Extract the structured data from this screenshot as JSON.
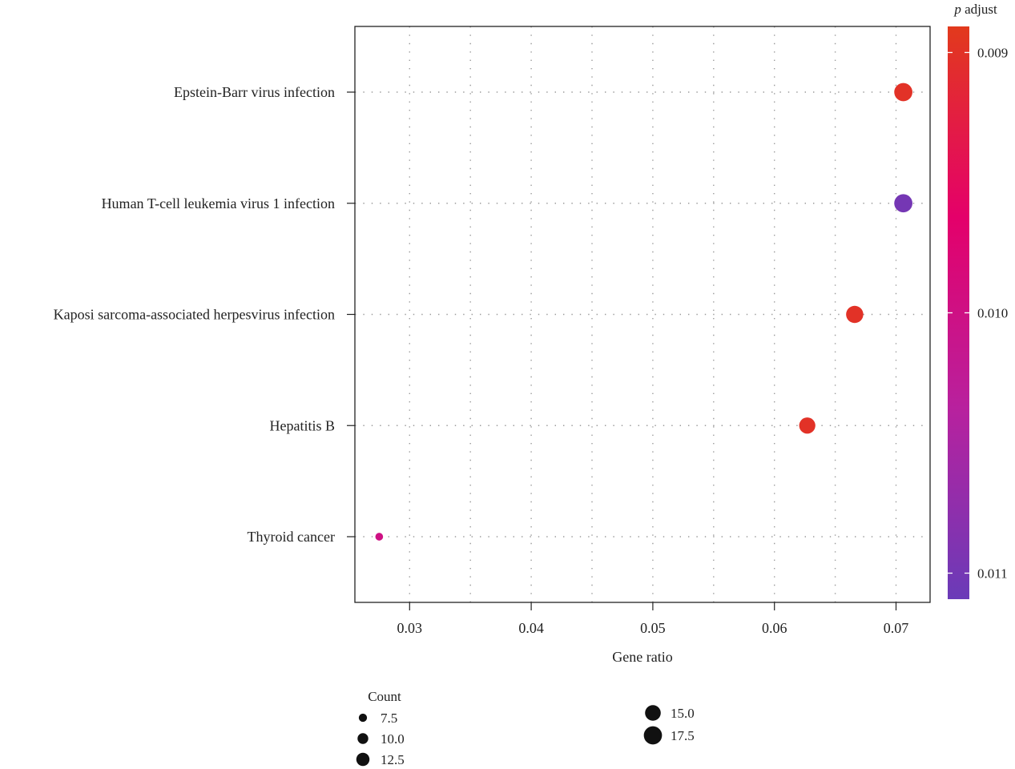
{
  "chart_data": {
    "type": "scatter",
    "xlabel": "Gene ratio",
    "ylabel": "",
    "xlim": [
      0.0255,
      0.0728
    ],
    "x_ticks": [
      0.03,
      0.04,
      0.05,
      0.06,
      0.07
    ],
    "x_tick_labels": [
      "0.03",
      "0.04",
      "0.05",
      "0.06",
      "0.07"
    ],
    "grid": true,
    "categories": [
      "Epstein-Barr virus infection",
      "Human T-cell leukemia virus 1 infection",
      "Kaposi sarcoma-associated herpesvirus infection",
      "Hepatitis B",
      "Thyroid cancer"
    ],
    "points": [
      {
        "category": "Epstein-Barr virus infection",
        "x": 0.0706,
        "count": 17.5,
        "p_adjust": 0.009
      },
      {
        "category": "Human T-cell leukemia virus 1 infection",
        "x": 0.0706,
        "count": 17.5,
        "p_adjust": 0.011
      },
      {
        "category": "Kaposi sarcoma-associated herpesvirus infection",
        "x": 0.0666,
        "count": 16.5,
        "p_adjust": 0.009
      },
      {
        "category": "Hepatitis B",
        "x": 0.0627,
        "count": 15.5,
        "p_adjust": 0.009
      },
      {
        "category": "Thyroid cancer",
        "x": 0.0275,
        "count": 7.0,
        "p_adjust": 0.01
      }
    ],
    "color_legend": {
      "title_italic": "p",
      "title_rest": " adjust",
      "range": [
        0.0089,
        0.0111
      ],
      "ticks": [
        0.009,
        0.01,
        0.011
      ],
      "tick_labels": [
        "0.009",
        "0.010",
        "0.011"
      ],
      "colors": [
        "#e23a1c",
        "#e4006a",
        "#b8219e",
        "#6a3bb8"
      ]
    },
    "size_legend": {
      "title": "Count",
      "values": [
        7.5,
        10.0,
        12.5,
        15.0,
        17.5
      ],
      "labels": [
        "7.5",
        "10.0",
        "12.5",
        "15.0",
        "17.5"
      ],
      "placement": "bottom"
    }
  }
}
